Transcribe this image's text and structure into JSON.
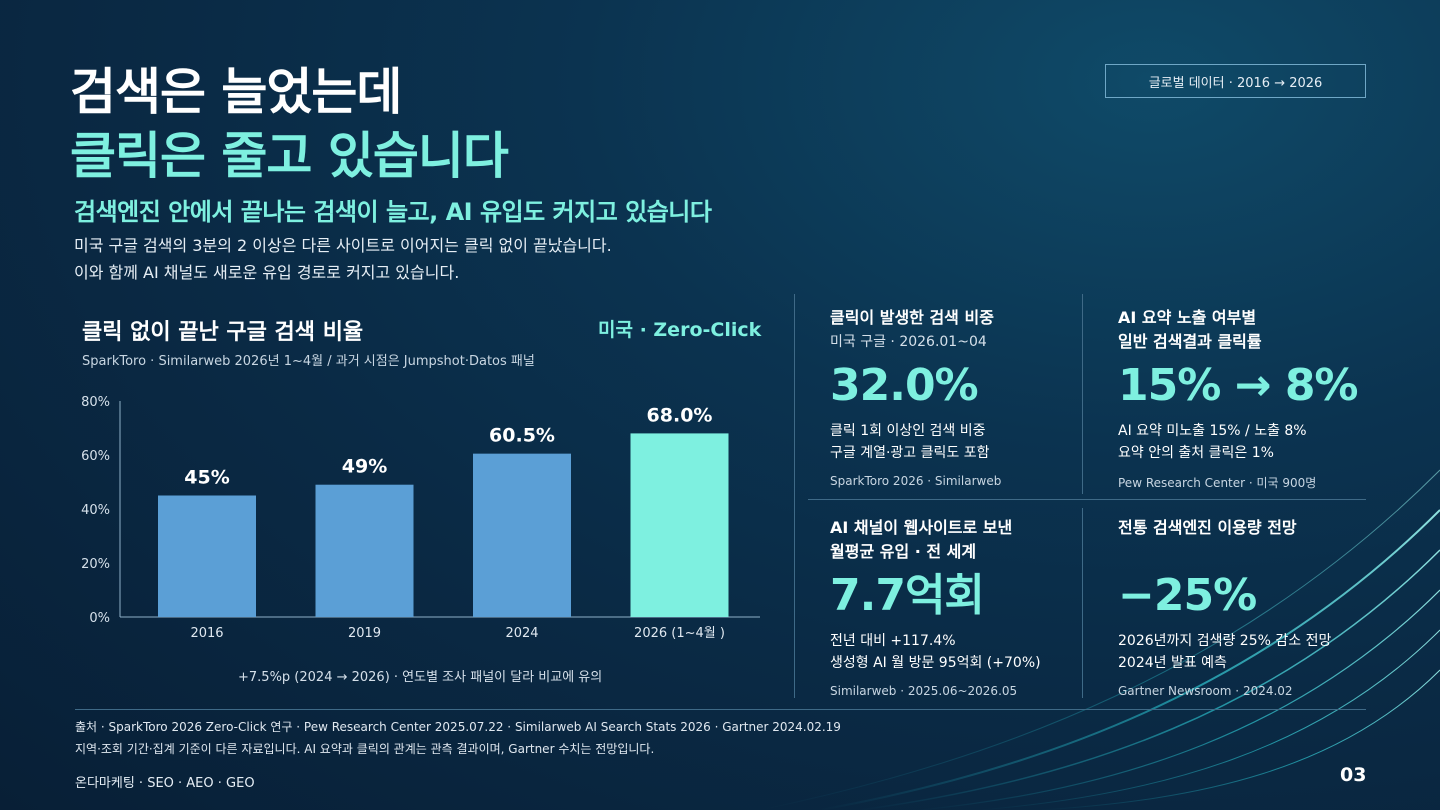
{
  "header": {
    "title_line1": "검색은 늘었는데",
    "title_line2": "클릭은 줄고 있습니다",
    "subtitle": "검색엔진 안에서 끝나는 검색이 늘고, AI 유입도 커지고 있습니다",
    "desc_line1": "미국 구글 검색의 3분의 2 이상은 다른 사이트로 이어지는 클릭 없이 끝났습니다.",
    "desc_line2": "이와 함께 AI 채널도 새로운 유입 경로로 커지고 있습니다.",
    "tag": "글로벌 데이터 · 2016 → 2026"
  },
  "chart_panel": {
    "title": "클릭 없이 끝난 구글 검색 비율",
    "badge": "미국 · Zero-Click",
    "source": "SparkToro · Similarweb 2026년 1~4월 / 과거 시점은 Jumpshot·Datos 패널",
    "note": "+7.5%p (2024 → 2026) · 연도별 조사 패널이 달라 비교에 유의"
  },
  "chart_data": {
    "type": "bar",
    "title": "클릭 없이 끝난 구글 검색 비율",
    "categories": [
      "2016",
      "2019",
      "2024",
      "2026 (1~4월 )"
    ],
    "values": [
      45,
      49,
      60.5,
      68.0
    ],
    "data_labels": [
      "45%",
      "49%",
      "60.5%",
      "68.0%"
    ],
    "y_ticks": [
      0,
      20,
      40,
      60,
      80
    ],
    "y_tick_labels": [
      "0%",
      "20%",
      "40%",
      "60%",
      "80%"
    ],
    "ylim": [
      0,
      80
    ],
    "xlabel": "",
    "ylabel": "",
    "grid": false,
    "colors": [
      "#5b9fd6",
      "#5b9fd6",
      "#5b9fd6",
      "#7ef0e0"
    ]
  },
  "cards": [
    {
      "head": "클릭이 발생한 검색 비중",
      "sub": "미국 구글 · 2026.01~04",
      "big": "32.0%",
      "body1": "클릭 1회 이상인 검색 비중",
      "body2": "구글 계열·광고 클릭도 포함",
      "src": "SparkToro 2026 · Similarweb"
    },
    {
      "head": "AI 요약 노출 여부별",
      "head2": "일반 검색결과 클릭률",
      "big": "15% → 8%",
      "body1": "AI 요약 미노출 15% / 노출 8%",
      "body2": "요약 안의 출처 클릭은 1%",
      "src": "Pew Research Center · 미국 900명"
    },
    {
      "head": "AI 채널이 웹사이트로 보낸",
      "head2": "월평균 유입 · 전 세계",
      "big": "7.7억회",
      "body1": "전년 대비 +117.4%",
      "body2": "생성형 AI 월 방문 95억회 (+70%)",
      "src": "Similarweb · 2025.06~2026.05"
    },
    {
      "head": "전통 검색엔진 이용량 전망",
      "big": "−25%",
      "body1": "2026년까지 검색량 25% 감소 전망",
      "body2": "2024년 발표 예측",
      "src": "Gartner Newsroom · 2024.02"
    }
  ],
  "footer": {
    "sources": "출처 · SparkToro 2026 Zero-Click 연구 · Pew Research Center 2025.07.22 · Similarweb AI Search Stats 2026 · Gartner 2024.02.19",
    "caveat": "지역·조회 기간·집계 기준이 다른 자료입니다. AI 요약과 클릭의 관계는 관측 결과이며, Gartner 수치는 전망입니다.",
    "brand": "온다마케팅 · SEO · AEO · GEO",
    "page": "03"
  }
}
